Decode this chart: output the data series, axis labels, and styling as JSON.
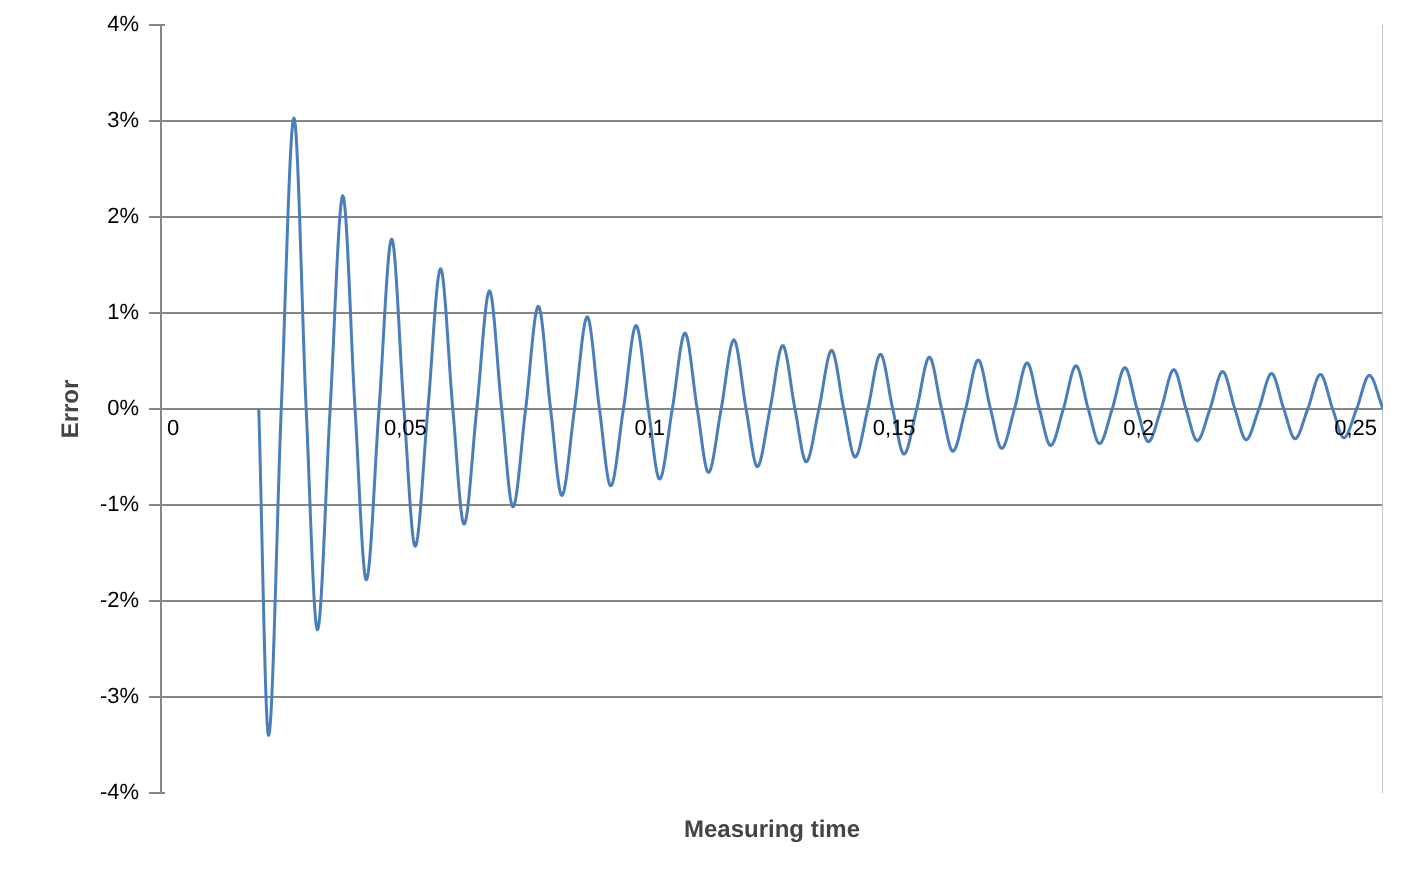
{
  "chart_data": {
    "type": "line",
    "xlabel": "Measuring time",
    "ylabel": "Error",
    "x": [
      0.02,
      0.022,
      0.0246,
      0.0272,
      0.0297,
      0.032,
      0.0346,
      0.0372,
      0.0397,
      0.042,
      0.0446,
      0.0472,
      0.0497,
      0.052,
      0.0546,
      0.0572,
      0.0597,
      0.062,
      0.0646,
      0.0672,
      0.0697,
      0.072,
      0.0746,
      0.0772,
      0.0797,
      0.082,
      0.0846,
      0.0872,
      0.0897,
      0.092,
      0.0946,
      0.0972,
      0.0997,
      0.102,
      0.1046,
      0.1072,
      0.1097,
      0.112,
      0.1146,
      0.1172,
      0.1197,
      0.122,
      0.1246,
      0.1272,
      0.1297,
      0.132,
      0.1346,
      0.1372,
      0.1397,
      0.142,
      0.1446,
      0.1472,
      0.1497,
      0.152,
      0.1546,
      0.1572,
      0.1597,
      0.162,
      0.1646,
      0.1672,
      0.1697,
      0.172,
      0.1746,
      0.1772,
      0.1797,
      0.182,
      0.1846,
      0.1872,
      0.1897,
      0.192,
      0.1946,
      0.1972,
      0.1997,
      0.202,
      0.2046,
      0.2072,
      0.2097,
      0.212,
      0.2146,
      0.2172,
      0.2197,
      0.222,
      0.2246,
      0.2272,
      0.2297,
      0.232,
      0.2346,
      0.2372,
      0.2397,
      0.242,
      0.2446,
      0.2472,
      0.25
    ],
    "series": [
      {
        "color": "#4a7ebb",
        "values": [
          0,
          -3.4,
          0,
          3.03,
          0,
          -2.3,
          0,
          2.22,
          0,
          -1.78,
          0,
          1.77,
          0,
          -1.43,
          0,
          1.46,
          0,
          -1.2,
          0,
          1.23,
          0,
          -1.02,
          0,
          1.07,
          0,
          -0.9,
          0,
          0.96,
          0,
          -0.8,
          0,
          0.87,
          0,
          -0.73,
          0,
          0.79,
          0,
          -0.66,
          0,
          0.72,
          0,
          -0.6,
          0,
          0.66,
          0,
          -0.55,
          0,
          0.61,
          0,
          -0.5,
          0,
          0.57,
          0,
          -0.47,
          0,
          0.54,
          0,
          -0.44,
          0,
          0.51,
          0,
          -0.41,
          0,
          0.48,
          0,
          -0.38,
          0,
          0.45,
          0,
          -0.36,
          0,
          0.43,
          0,
          -0.34,
          0,
          0.41,
          0,
          -0.33,
          0,
          0.39,
          0,
          -0.32,
          0,
          0.37,
          0,
          -0.31,
          0,
          0.36,
          0,
          -0.3,
          0,
          0.35,
          0
        ]
      }
    ],
    "xlim": [
      0,
      0.25
    ],
    "ylim": [
      -4,
      4
    ],
    "xticks": [
      0,
      {
        "value": 0.05,
        "label": "0,05"
      },
      {
        "value": 0.1,
        "label": "0,1"
      },
      {
        "value": 0.15,
        "label": "0,15"
      },
      {
        "value": 0.2,
        "label": "0,2"
      },
      {
        "value": 0.25,
        "label": "0,25"
      }
    ],
    "yticks": [
      {
        "value": -4,
        "label": "-4%"
      },
      {
        "value": -3,
        "label": "-3%"
      },
      {
        "value": -2,
        "label": "-2%"
      },
      {
        "value": -1,
        "label": "-1%"
      },
      {
        "value": 0,
        "label": "0%"
      },
      {
        "value": 1,
        "label": "1%"
      },
      {
        "value": 2,
        "label": "2%"
      },
      {
        "value": 3,
        "label": "3%"
      },
      {
        "value": 4,
        "label": "4%"
      }
    ],
    "grid": "y",
    "marker": "none",
    "line_style": "solid"
  }
}
